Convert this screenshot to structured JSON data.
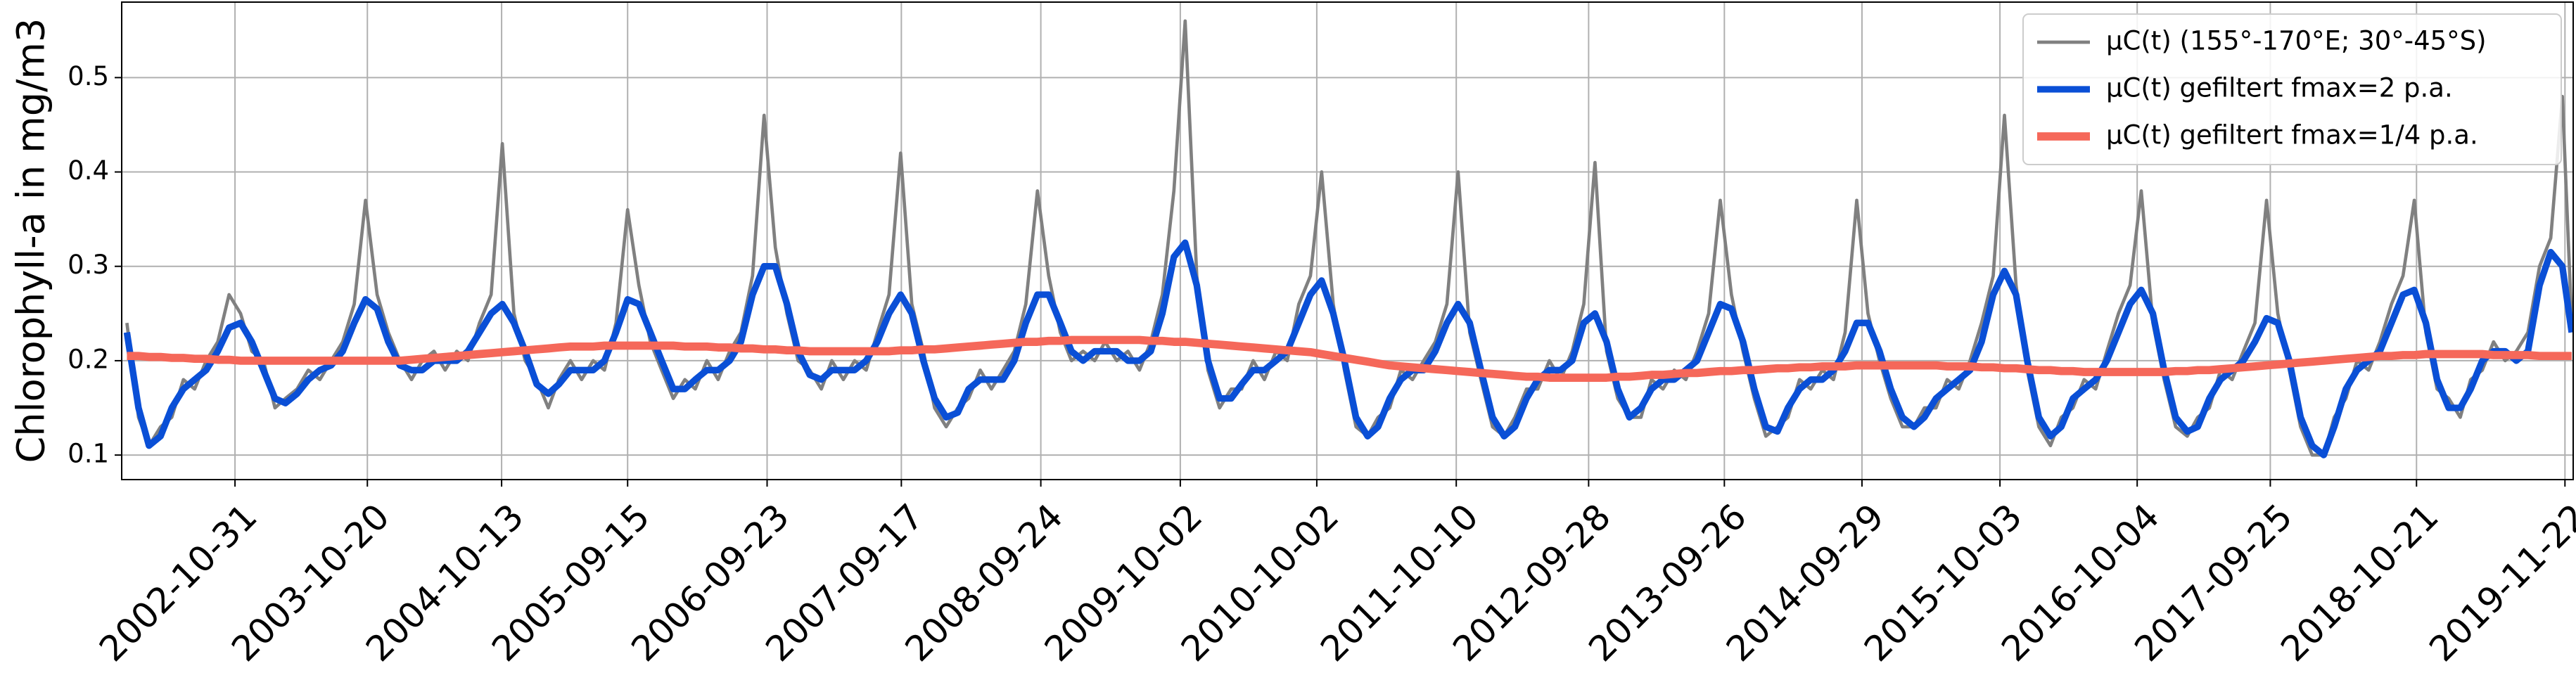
{
  "chart_data": {
    "type": "line",
    "y_label": "Chlorophyll-a in mg/m3",
    "x": [
      "2002-01-15",
      "2002-02-15",
      "2002-03-15",
      "2002-04-15",
      "2002-05-15",
      "2002-06-15",
      "2002-07-15",
      "2002-08-15",
      "2002-09-15",
      "2002-10-15",
      "2002-11-15",
      "2002-12-15",
      "2003-01-15",
      "2003-02-15",
      "2003-03-15",
      "2003-04-15",
      "2003-05-15",
      "2003-06-15",
      "2003-07-15",
      "2003-08-15",
      "2003-09-15",
      "2003-10-15",
      "2003-11-15",
      "2003-12-15",
      "2004-01-15",
      "2004-02-15",
      "2004-03-15",
      "2004-04-15",
      "2004-05-15",
      "2004-06-15",
      "2004-07-15",
      "2004-08-15",
      "2004-09-15",
      "2004-10-15",
      "2004-11-15",
      "2004-12-15",
      "2005-01-15",
      "2005-02-15",
      "2005-03-15",
      "2005-04-15",
      "2005-05-15",
      "2005-06-15",
      "2005-07-15",
      "2005-08-15",
      "2005-09-15",
      "2005-10-15",
      "2005-11-15",
      "2005-12-15",
      "2006-01-15",
      "2006-02-15",
      "2006-03-15",
      "2006-04-15",
      "2006-05-15",
      "2006-06-15",
      "2006-07-15",
      "2006-08-15",
      "2006-09-15",
      "2006-10-15",
      "2006-11-15",
      "2006-12-15",
      "2007-01-15",
      "2007-02-15",
      "2007-03-15",
      "2007-04-15",
      "2007-05-15",
      "2007-06-15",
      "2007-07-15",
      "2007-08-15",
      "2007-09-15",
      "2007-10-15",
      "2007-11-15",
      "2007-12-15",
      "2008-01-15",
      "2008-02-15",
      "2008-03-15",
      "2008-04-15",
      "2008-05-15",
      "2008-06-15",
      "2008-07-15",
      "2008-08-15",
      "2008-09-15",
      "2008-10-15",
      "2008-11-15",
      "2008-12-15",
      "2009-01-15",
      "2009-02-15",
      "2009-03-15",
      "2009-04-15",
      "2009-05-15",
      "2009-06-15",
      "2009-07-15",
      "2009-08-15",
      "2009-09-15",
      "2009-10-15",
      "2009-11-15",
      "2009-12-15",
      "2010-01-15",
      "2010-02-15",
      "2010-03-15",
      "2010-04-15",
      "2010-05-15",
      "2010-06-15",
      "2010-07-15",
      "2010-08-15",
      "2010-09-15",
      "2010-10-15",
      "2010-11-15",
      "2010-12-15",
      "2011-01-15",
      "2011-02-15",
      "2011-03-15",
      "2011-04-15",
      "2011-05-15",
      "2011-06-15",
      "2011-07-15",
      "2011-08-15",
      "2011-09-15",
      "2011-10-15",
      "2011-11-15",
      "2011-12-15",
      "2012-01-15",
      "2012-02-15",
      "2012-03-15",
      "2012-04-15",
      "2012-05-15",
      "2012-06-15",
      "2012-07-15",
      "2012-08-15",
      "2012-09-15",
      "2012-10-15",
      "2012-11-15",
      "2012-12-15",
      "2013-01-15",
      "2013-02-15",
      "2013-03-15",
      "2013-04-15",
      "2013-05-15",
      "2013-06-15",
      "2013-07-15",
      "2013-08-15",
      "2013-09-15",
      "2013-10-15",
      "2013-11-15",
      "2013-12-15",
      "2014-01-15",
      "2014-02-15",
      "2014-03-15",
      "2014-04-15",
      "2014-05-15",
      "2014-06-15",
      "2014-07-15",
      "2014-08-15",
      "2014-09-15",
      "2014-10-15",
      "2014-11-15",
      "2014-12-15",
      "2015-01-15",
      "2015-02-15",
      "2015-03-15",
      "2015-04-15",
      "2015-05-15",
      "2015-06-15",
      "2015-07-15",
      "2015-08-15",
      "2015-09-15",
      "2015-10-15",
      "2015-11-15",
      "2015-12-15",
      "2016-01-15",
      "2016-02-15",
      "2016-03-15",
      "2016-04-15",
      "2016-05-15",
      "2016-06-15",
      "2016-07-15",
      "2016-08-15",
      "2016-09-15",
      "2016-10-15",
      "2016-11-15",
      "2016-12-15",
      "2017-01-15",
      "2017-02-15",
      "2017-03-15",
      "2017-04-15",
      "2017-05-15",
      "2017-06-15",
      "2017-07-15",
      "2017-08-15",
      "2017-09-15",
      "2017-10-15",
      "2017-11-15",
      "2017-12-15",
      "2018-01-15",
      "2018-02-15",
      "2018-03-15",
      "2018-04-15",
      "2018-05-15",
      "2018-06-15",
      "2018-07-15",
      "2018-08-15",
      "2018-09-15",
      "2018-10-15",
      "2018-11-15",
      "2018-12-15",
      "2019-01-15",
      "2019-02-15",
      "2019-03-15",
      "2019-04-15",
      "2019-05-15",
      "2019-06-15",
      "2019-07-15",
      "2019-08-15",
      "2019-09-15",
      "2019-10-15",
      "2019-11-15",
      "2019-12-10"
    ],
    "series": [
      {
        "name": "μC(t) (155°-170°E; 30°-45°S)",
        "color": "#808080",
        "width": 2,
        "values": [
          0.24,
          0.14,
          0.11,
          0.13,
          0.14,
          0.18,
          0.17,
          0.2,
          0.22,
          0.27,
          0.25,
          0.21,
          0.2,
          0.15,
          0.16,
          0.17,
          0.19,
          0.18,
          0.2,
          0.22,
          0.26,
          0.37,
          0.27,
          0.23,
          0.2,
          0.18,
          0.2,
          0.21,
          0.19,
          0.21,
          0.2,
          0.24,
          0.27,
          0.43,
          0.25,
          0.2,
          0.18,
          0.15,
          0.18,
          0.2,
          0.18,
          0.2,
          0.19,
          0.24,
          0.36,
          0.28,
          0.22,
          0.19,
          0.16,
          0.18,
          0.17,
          0.2,
          0.18,
          0.21,
          0.23,
          0.29,
          0.46,
          0.32,
          0.25,
          0.2,
          0.19,
          0.17,
          0.2,
          0.18,
          0.2,
          0.19,
          0.23,
          0.27,
          0.42,
          0.26,
          0.21,
          0.15,
          0.13,
          0.15,
          0.16,
          0.19,
          0.17,
          0.19,
          0.21,
          0.26,
          0.38,
          0.29,
          0.23,
          0.2,
          0.21,
          0.2,
          0.22,
          0.2,
          0.21,
          0.19,
          0.22,
          0.27,
          0.38,
          0.56,
          0.29,
          0.19,
          0.15,
          0.17,
          0.17,
          0.2,
          0.18,
          0.21,
          0.2,
          0.26,
          0.29,
          0.4,
          0.26,
          0.19,
          0.13,
          0.12,
          0.14,
          0.15,
          0.19,
          0.18,
          0.2,
          0.22,
          0.26,
          0.4,
          0.23,
          0.18,
          0.13,
          0.12,
          0.14,
          0.17,
          0.17,
          0.2,
          0.18,
          0.21,
          0.26,
          0.41,
          0.21,
          0.16,
          0.14,
          0.14,
          0.18,
          0.17,
          0.19,
          0.18,
          0.21,
          0.25,
          0.37,
          0.27,
          0.21,
          0.16,
          0.12,
          0.13,
          0.14,
          0.18,
          0.17,
          0.19,
          0.18,
          0.23,
          0.37,
          0.25,
          0.2,
          0.16,
          0.13,
          0.13,
          0.15,
          0.15,
          0.18,
          0.17,
          0.2,
          0.24,
          0.29,
          0.46,
          0.28,
          0.19,
          0.13,
          0.11,
          0.14,
          0.15,
          0.18,
          0.17,
          0.21,
          0.25,
          0.28,
          0.38,
          0.24,
          0.18,
          0.13,
          0.12,
          0.14,
          0.15,
          0.19,
          0.18,
          0.21,
          0.24,
          0.37,
          0.25,
          0.19,
          0.13,
          0.1,
          0.1,
          0.14,
          0.16,
          0.2,
          0.19,
          0.22,
          0.26,
          0.29,
          0.37,
          0.23,
          0.17,
          0.16,
          0.14,
          0.18,
          0.19,
          0.22,
          0.2,
          0.21,
          0.23,
          0.3,
          0.33,
          0.48,
          0.24
        ]
      },
      {
        "name": "μC(t) gefiltert fmax=2 p.a.",
        "color": "#0a4fd6",
        "width": 4,
        "values": [
          0.23,
          0.15,
          0.11,
          0.12,
          0.15,
          0.17,
          0.18,
          0.19,
          0.21,
          0.235,
          0.24,
          0.22,
          0.19,
          0.16,
          0.155,
          0.165,
          0.18,
          0.19,
          0.195,
          0.21,
          0.24,
          0.265,
          0.255,
          0.22,
          0.195,
          0.19,
          0.19,
          0.2,
          0.2,
          0.2,
          0.21,
          0.23,
          0.25,
          0.26,
          0.24,
          0.21,
          0.175,
          0.165,
          0.175,
          0.19,
          0.19,
          0.19,
          0.2,
          0.23,
          0.265,
          0.26,
          0.23,
          0.2,
          0.17,
          0.17,
          0.18,
          0.19,
          0.19,
          0.2,
          0.22,
          0.27,
          0.3,
          0.3,
          0.26,
          0.21,
          0.185,
          0.18,
          0.19,
          0.19,
          0.19,
          0.2,
          0.22,
          0.25,
          0.27,
          0.25,
          0.2,
          0.16,
          0.14,
          0.145,
          0.17,
          0.18,
          0.18,
          0.18,
          0.2,
          0.24,
          0.27,
          0.27,
          0.24,
          0.21,
          0.2,
          0.21,
          0.21,
          0.21,
          0.2,
          0.2,
          0.21,
          0.25,
          0.31,
          0.325,
          0.28,
          0.2,
          0.16,
          0.16,
          0.175,
          0.19,
          0.19,
          0.2,
          0.21,
          0.24,
          0.27,
          0.285,
          0.25,
          0.2,
          0.14,
          0.12,
          0.13,
          0.16,
          0.18,
          0.19,
          0.19,
          0.21,
          0.24,
          0.26,
          0.24,
          0.19,
          0.14,
          0.12,
          0.13,
          0.16,
          0.18,
          0.19,
          0.19,
          0.2,
          0.24,
          0.25,
          0.22,
          0.17,
          0.14,
          0.15,
          0.17,
          0.18,
          0.18,
          0.19,
          0.2,
          0.23,
          0.26,
          0.255,
          0.22,
          0.17,
          0.13,
          0.125,
          0.15,
          0.17,
          0.18,
          0.18,
          0.19,
          0.21,
          0.24,
          0.24,
          0.21,
          0.17,
          0.14,
          0.13,
          0.14,
          0.16,
          0.17,
          0.18,
          0.19,
          0.22,
          0.27,
          0.295,
          0.27,
          0.2,
          0.14,
          0.12,
          0.13,
          0.16,
          0.17,
          0.18,
          0.2,
          0.23,
          0.26,
          0.275,
          0.25,
          0.19,
          0.14,
          0.125,
          0.13,
          0.16,
          0.18,
          0.19,
          0.2,
          0.22,
          0.245,
          0.24,
          0.2,
          0.14,
          0.11,
          0.1,
          0.13,
          0.17,
          0.19,
          0.2,
          0.21,
          0.24,
          0.27,
          0.275,
          0.24,
          0.18,
          0.15,
          0.15,
          0.17,
          0.2,
          0.21,
          0.21,
          0.2,
          0.21,
          0.28,
          0.315,
          0.3,
          0.23
        ]
      },
      {
        "name": "μC(t) gefiltert fmax=1/4 p.a.",
        "color": "#f5685a",
        "width": 5,
        "values": [
          0.205,
          0.205,
          0.204,
          0.204,
          0.203,
          0.203,
          0.202,
          0.202,
          0.201,
          0.201,
          0.2,
          0.2,
          0.2,
          0.2,
          0.2,
          0.2,
          0.2,
          0.2,
          0.2,
          0.2,
          0.2,
          0.2,
          0.2,
          0.2,
          0.2,
          0.201,
          0.202,
          0.203,
          0.204,
          0.205,
          0.206,
          0.207,
          0.208,
          0.209,
          0.21,
          0.211,
          0.212,
          0.213,
          0.214,
          0.215,
          0.215,
          0.215,
          0.216,
          0.216,
          0.216,
          0.216,
          0.216,
          0.216,
          0.216,
          0.215,
          0.215,
          0.215,
          0.214,
          0.214,
          0.213,
          0.213,
          0.212,
          0.212,
          0.211,
          0.211,
          0.21,
          0.21,
          0.21,
          0.21,
          0.21,
          0.21,
          0.21,
          0.21,
          0.211,
          0.211,
          0.212,
          0.212,
          0.213,
          0.214,
          0.215,
          0.216,
          0.217,
          0.218,
          0.219,
          0.22,
          0.22,
          0.221,
          0.221,
          0.222,
          0.222,
          0.222,
          0.222,
          0.222,
          0.222,
          0.222,
          0.221,
          0.221,
          0.22,
          0.22,
          0.219,
          0.218,
          0.217,
          0.216,
          0.215,
          0.214,
          0.213,
          0.212,
          0.211,
          0.21,
          0.209,
          0.207,
          0.205,
          0.203,
          0.201,
          0.199,
          0.197,
          0.195,
          0.194,
          0.193,
          0.192,
          0.191,
          0.19,
          0.189,
          0.188,
          0.187,
          0.186,
          0.185,
          0.184,
          0.183,
          0.183,
          0.182,
          0.182,
          0.182,
          0.182,
          0.182,
          0.182,
          0.183,
          0.183,
          0.184,
          0.185,
          0.185,
          0.186,
          0.187,
          0.187,
          0.188,
          0.189,
          0.189,
          0.19,
          0.19,
          0.191,
          0.192,
          0.192,
          0.193,
          0.193,
          0.194,
          0.194,
          0.194,
          0.195,
          0.195,
          0.195,
          0.195,
          0.195,
          0.195,
          0.195,
          0.195,
          0.194,
          0.194,
          0.194,
          0.193,
          0.193,
          0.192,
          0.192,
          0.191,
          0.19,
          0.19,
          0.189,
          0.189,
          0.188,
          0.188,
          0.188,
          0.188,
          0.188,
          0.188,
          0.188,
          0.188,
          0.189,
          0.189,
          0.19,
          0.19,
          0.191,
          0.192,
          0.193,
          0.194,
          0.195,
          0.196,
          0.197,
          0.198,
          0.199,
          0.2,
          0.201,
          0.202,
          0.203,
          0.204,
          0.205,
          0.205,
          0.206,
          0.206,
          0.207,
          0.207,
          0.207,
          0.207,
          0.207,
          0.207,
          0.206,
          0.206,
          0.206,
          0.206,
          0.205,
          0.205,
          0.205,
          0.205
        ]
      }
    ],
    "xlim": [
      "2002-01-01",
      "2019-12-14"
    ],
    "xticks": [
      "2002-10-31",
      "2003-10-20",
      "2004-10-13",
      "2005-09-15",
      "2006-09-23",
      "2007-09-17",
      "2008-09-24",
      "2009-10-02",
      "2010-10-02",
      "2011-10-10",
      "2012-09-28",
      "2013-09-26",
      "2014-09-29",
      "2015-10-03",
      "2016-10-04",
      "2017-09-25",
      "2018-10-21",
      "2019-11-22"
    ],
    "ylim": [
      0.074,
      0.58
    ],
    "yticks": [
      0.1,
      0.2,
      0.3,
      0.4,
      0.5
    ],
    "grid": true,
    "legend": "upper right"
  }
}
